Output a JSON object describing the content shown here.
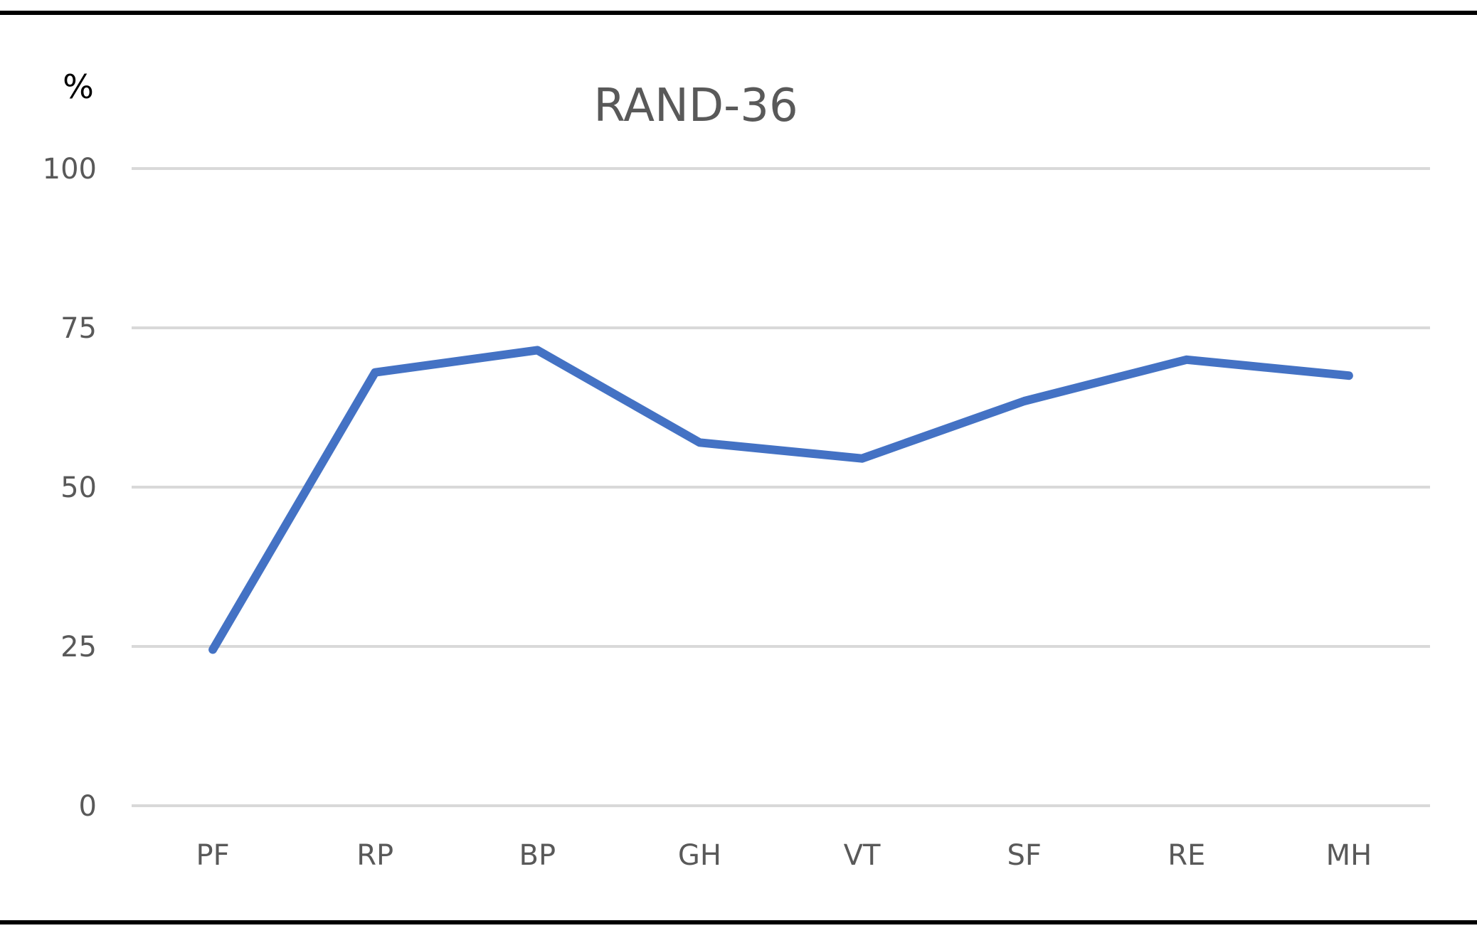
{
  "chart_data": {
    "type": "line",
    "title": "RAND-36",
    "ylabel": "%",
    "xlabel": "",
    "ylim": [
      0,
      100
    ],
    "yticks": [
      0,
      25,
      50,
      75,
      100
    ],
    "grid": true,
    "legend": "none",
    "categories": [
      "PF",
      "RP",
      "BP",
      "GH",
      "VT",
      "SF",
      "RE",
      "MH"
    ],
    "series": [
      {
        "color": "#4472c4",
        "values": [
          24.5,
          68.0,
          71.5,
          57.0,
          54.5,
          63.5,
          70.0,
          67.5
        ]
      }
    ]
  }
}
